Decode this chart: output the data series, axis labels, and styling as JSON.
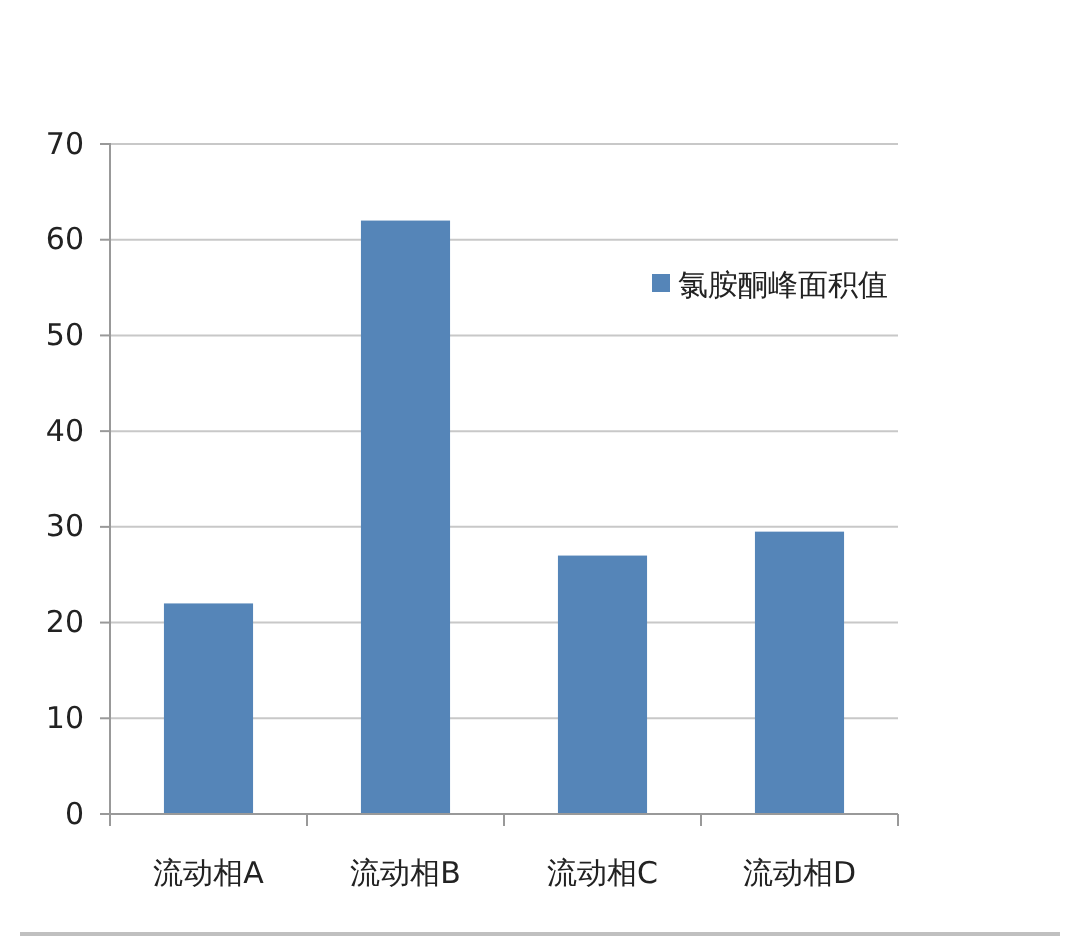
{
  "chart_data": {
    "type": "bar",
    "categories": [
      "流动相A",
      "流动相B",
      "流动相C",
      "流动相D"
    ],
    "series": [
      {
        "name": "氯胺酮峰面积值",
        "color": "#5585b8",
        "values": [
          22,
          62,
          27,
          29.5
        ]
      }
    ],
    "ylim": [
      0,
      70
    ],
    "yticks": [
      0,
      10,
      20,
      30,
      40,
      50,
      60,
      70
    ],
    "grid": "y",
    "legend": "top right"
  }
}
